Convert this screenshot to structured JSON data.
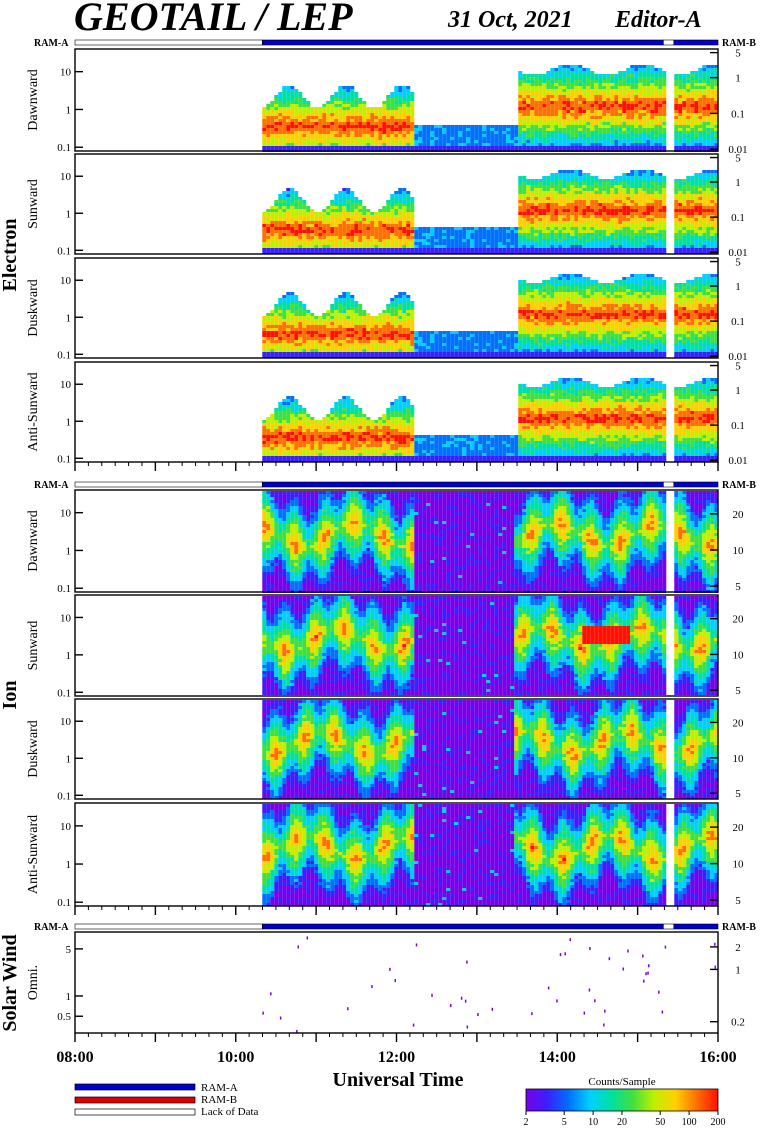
{
  "header": {
    "title": "GEOTAIL / LEP",
    "date": "31 Oct, 2021",
    "editor": "Editor-A"
  },
  "mode_labels": {
    "left": "RAM-A",
    "right": "RAM-B"
  },
  "groups": [
    {
      "name": "Electron"
    },
    {
      "name": "Ion"
    },
    {
      "name": "Solar Wind"
    }
  ],
  "colors": {
    "ram_a": "#0000cc",
    "ram_b": "#dd0000",
    "lack": "#ffffff",
    "palette": [
      "#7a00e6",
      "#3a20ff",
      "#0070ff",
      "#00d0ff",
      "#00e0a0",
      "#40e040",
      "#c0f000",
      "#ffd000",
      "#ff7000",
      "#ff1000"
    ]
  },
  "legend": {
    "ram_a": "RAM-A",
    "ram_b": "RAM-B",
    "lack": "Lack of Data"
  },
  "colorbar": {
    "title": "Counts/Sample",
    "ticks": [
      "2",
      "5",
      "10",
      "20",
      "50",
      "100",
      "200"
    ],
    "tick_values": [
      2,
      5,
      10,
      20,
      50,
      100,
      200
    ]
  },
  "chart_data": {
    "type": "heatmap",
    "xlabel": "Universal Time",
    "x_ticks": [
      "08:00",
      "10:00",
      "12:00",
      "14:00",
      "16:00"
    ],
    "x_range_hours": [
      8,
      16
    ],
    "data_start_hour": 10.33,
    "mode_intervals": [
      {
        "mode": "lack",
        "start": 8.0,
        "end": 10.33
      },
      {
        "mode": "ram_a",
        "start": 10.33,
        "end": 15.32
      },
      {
        "mode": "lack",
        "start": 15.32,
        "end": 15.45
      },
      {
        "mode": "ram_a",
        "start": 15.45,
        "end": 16.0
      }
    ],
    "panels": [
      {
        "group": 0,
        "ylabel": "Dawnward",
        "left_ticks": [
          "0.1",
          "1",
          "10"
        ],
        "right_ticks": [
          "0.01",
          "0.1",
          "1",
          "5"
        ],
        "left_log": [
          -1.1,
          1.6
        ],
        "right_log": [
          -2.05,
          0.8
        ]
      },
      {
        "group": 0,
        "ylabel": "Sunward",
        "left_ticks": [
          "0.1",
          "1",
          "10"
        ],
        "right_ticks": [
          "0.01",
          "0.1",
          "1",
          "5"
        ],
        "left_log": [
          -1.1,
          1.6
        ],
        "right_log": [
          -2.05,
          0.8
        ]
      },
      {
        "group": 0,
        "ylabel": "Duskward",
        "left_ticks": [
          "0.1",
          "1",
          "10"
        ],
        "right_ticks": [
          "0.01",
          "0.1",
          "1",
          "5"
        ],
        "left_log": [
          -1.1,
          1.6
        ],
        "right_log": [
          -2.05,
          0.8
        ]
      },
      {
        "group": 0,
        "ylabel": "Anti-Sunward",
        "left_ticks": [
          "0.1",
          "1",
          "10"
        ],
        "right_ticks": [
          "0.01",
          "0.1",
          "1",
          "5"
        ],
        "left_log": [
          -1.1,
          1.6
        ],
        "right_log": [
          -2.05,
          0.8
        ]
      },
      {
        "group": 1,
        "ylabel": "Dawnward",
        "left_ticks": [
          "0.1",
          "1",
          "10"
        ],
        "right_ticks": [
          "5",
          "10",
          "20"
        ],
        "left_log": [
          -1.1,
          1.6
        ],
        "right_log": [
          0.65,
          1.5
        ]
      },
      {
        "group": 1,
        "ylabel": "Sunward",
        "left_ticks": [
          "0.1",
          "1",
          "10"
        ],
        "right_ticks": [
          "5",
          "10",
          "20"
        ],
        "left_log": [
          -1.1,
          1.6
        ],
        "right_log": [
          0.65,
          1.5
        ]
      },
      {
        "group": 1,
        "ylabel": "Duskward",
        "left_ticks": [
          "0.1",
          "1",
          "10"
        ],
        "right_ticks": [
          "5",
          "10",
          "20"
        ],
        "left_log": [
          -1.1,
          1.6
        ],
        "right_log": [
          0.65,
          1.5
        ]
      },
      {
        "group": 1,
        "ylabel": "Anti-Sunward",
        "left_ticks": [
          "0.1",
          "1",
          "10"
        ],
        "right_ticks": [
          "5",
          "10",
          "20"
        ],
        "left_log": [
          -1.1,
          1.6
        ],
        "right_log": [
          0.65,
          1.5
        ]
      },
      {
        "group": 2,
        "ylabel": "Omni.",
        "left_ticks": [
          "0.5",
          "1",
          "5"
        ],
        "right_ticks": [
          "0.2",
          "1",
          "2"
        ],
        "left_log": [
          -0.55,
          0.95
        ],
        "right_log": [
          -0.85,
          0.5
        ]
      }
    ]
  }
}
